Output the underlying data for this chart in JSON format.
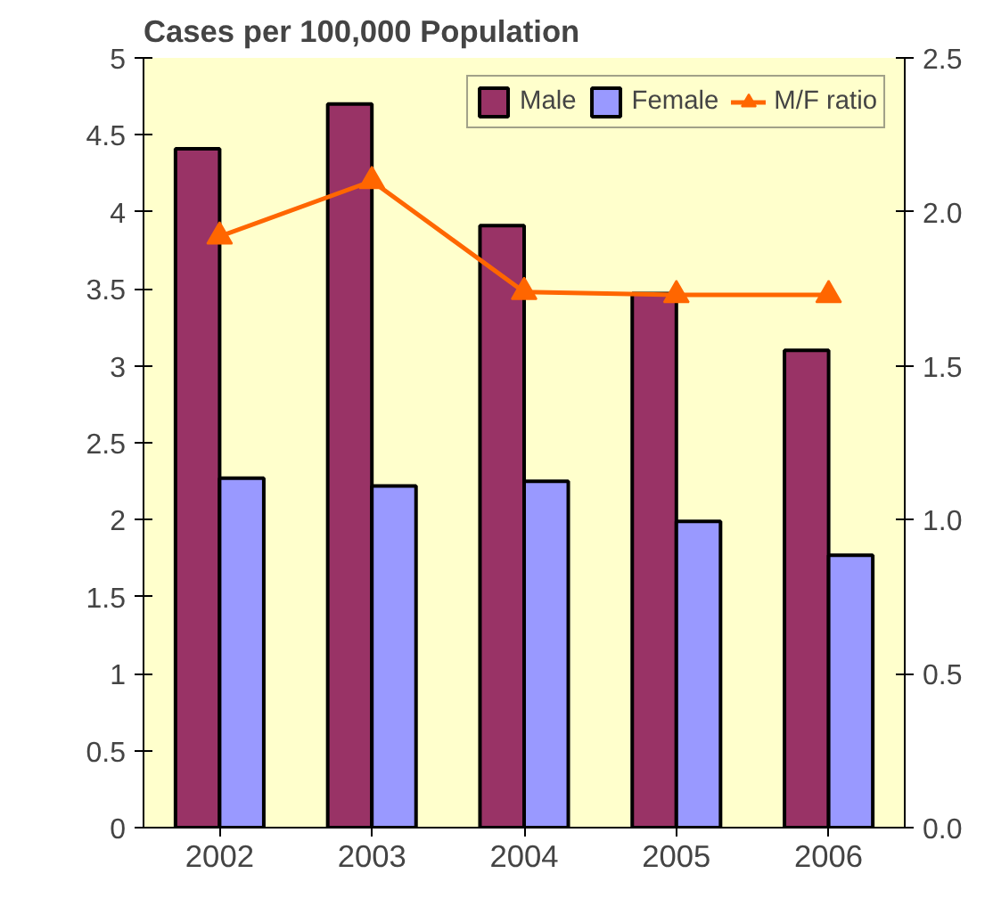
{
  "chart_data": {
    "type": "bar",
    "title": "Cases per 100,000 Population",
    "categories": [
      "2002",
      "2003",
      "2004",
      "2005",
      "2006"
    ],
    "series": [
      {
        "name": "Male",
        "color": "#993366",
        "values": [
          4.41,
          4.7,
          3.91,
          3.47,
          3.1
        ]
      },
      {
        "name": "Female",
        "color": "#9999ff",
        "values": [
          2.27,
          2.22,
          2.25,
          1.99,
          1.77
        ]
      },
      {
        "name": "M/F ratio",
        "color": "#ff6600",
        "type": "line",
        "axis": "y2",
        "marker": "triangle",
        "values": [
          1.92,
          2.1,
          1.74,
          1.73,
          1.73
        ]
      }
    ],
    "ylim": [
      0,
      5
    ],
    "yticks": [
      0,
      0.5,
      1,
      1.5,
      2,
      2.5,
      3,
      3.5,
      4,
      4.5,
      5
    ],
    "y2lim": [
      0,
      2.5
    ],
    "y2ticks": [
      {
        "value": 0,
        "label": "0.0"
      },
      {
        "value": 0.5,
        "label": "0.5"
      },
      {
        "value": 1,
        "label": "1.0"
      },
      {
        "value": 1.5,
        "label": "1.5"
      },
      {
        "value": 2,
        "label": "2.0"
      },
      {
        "value": 2.5,
        "label": "2.5"
      }
    ],
    "grid": false,
    "legend": "top right"
  }
}
